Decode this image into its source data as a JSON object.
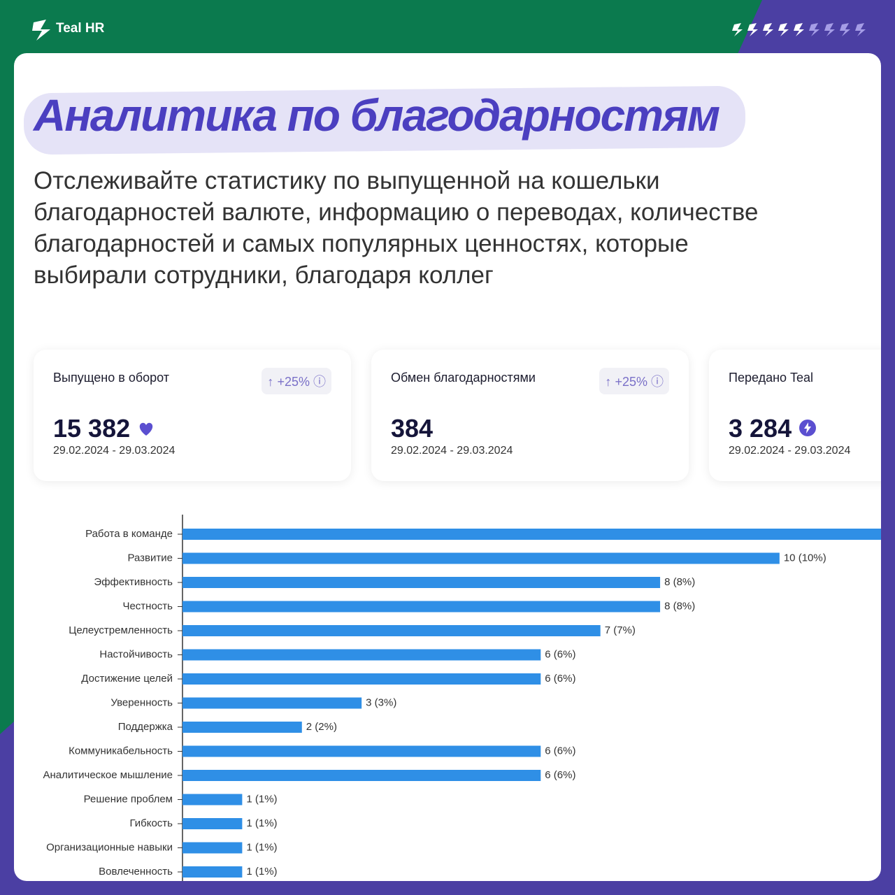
{
  "header": {
    "brand": "Teal HR"
  },
  "title": "Аналитика по благодарностям",
  "subtitle": [
    "Отслеживайте статистику по выпущенной на кошельки",
    "благодарностей валюте, информацию о переводах, количестве",
    "благодарностей и самых популярных ценностях, которые",
    "выбирали сотрудники, благодаря коллег"
  ],
  "stats": [
    {
      "label": "Выпущено в оборот",
      "change": "+25%",
      "value": "15 382",
      "period": "29.02.2024 - 29.03.2024"
    },
    {
      "label": "Обмен благодарностями",
      "change": "+25%",
      "value": "384",
      "period": "29.02.2024 - 29.03.2024"
    },
    {
      "label": "Передано Teal",
      "value": "3 284",
      "period": "29.02.2024 - 29.03.2024"
    }
  ],
  "chart_data": {
    "type": "hbar",
    "color": "#2f8fe6",
    "categories": [
      "Работа в команде",
      "Развитие",
      "Эффективность",
      "Честность",
      "Целеустремленность",
      "Настойчивость",
      "Достижение целей",
      "Уверенность",
      "Поддержка",
      "Коммуникабельность",
      "Аналитическое мышление",
      "Решение проблем",
      "Гибкость",
      "Организационные навыки",
      "Вовлеченность"
    ],
    "values": [
      12,
      10,
      8,
      8,
      7,
      6,
      6,
      3,
      2,
      6,
      6,
      1,
      1,
      1,
      1
    ],
    "value_labels": [
      null,
      "10 (10%)",
      "8 (8%)",
      "8 (8%)",
      "7 (7%)",
      "6 (6%)",
      "6 (6%)",
      "3 (3%)",
      "2 (2%)",
      "6 (6%)",
      "6 (6%)",
      "1 (1%)",
      "1 (1%)",
      "1 (1%)",
      "1 (1%)"
    ],
    "xlim": [
      0,
      11.7
    ]
  }
}
